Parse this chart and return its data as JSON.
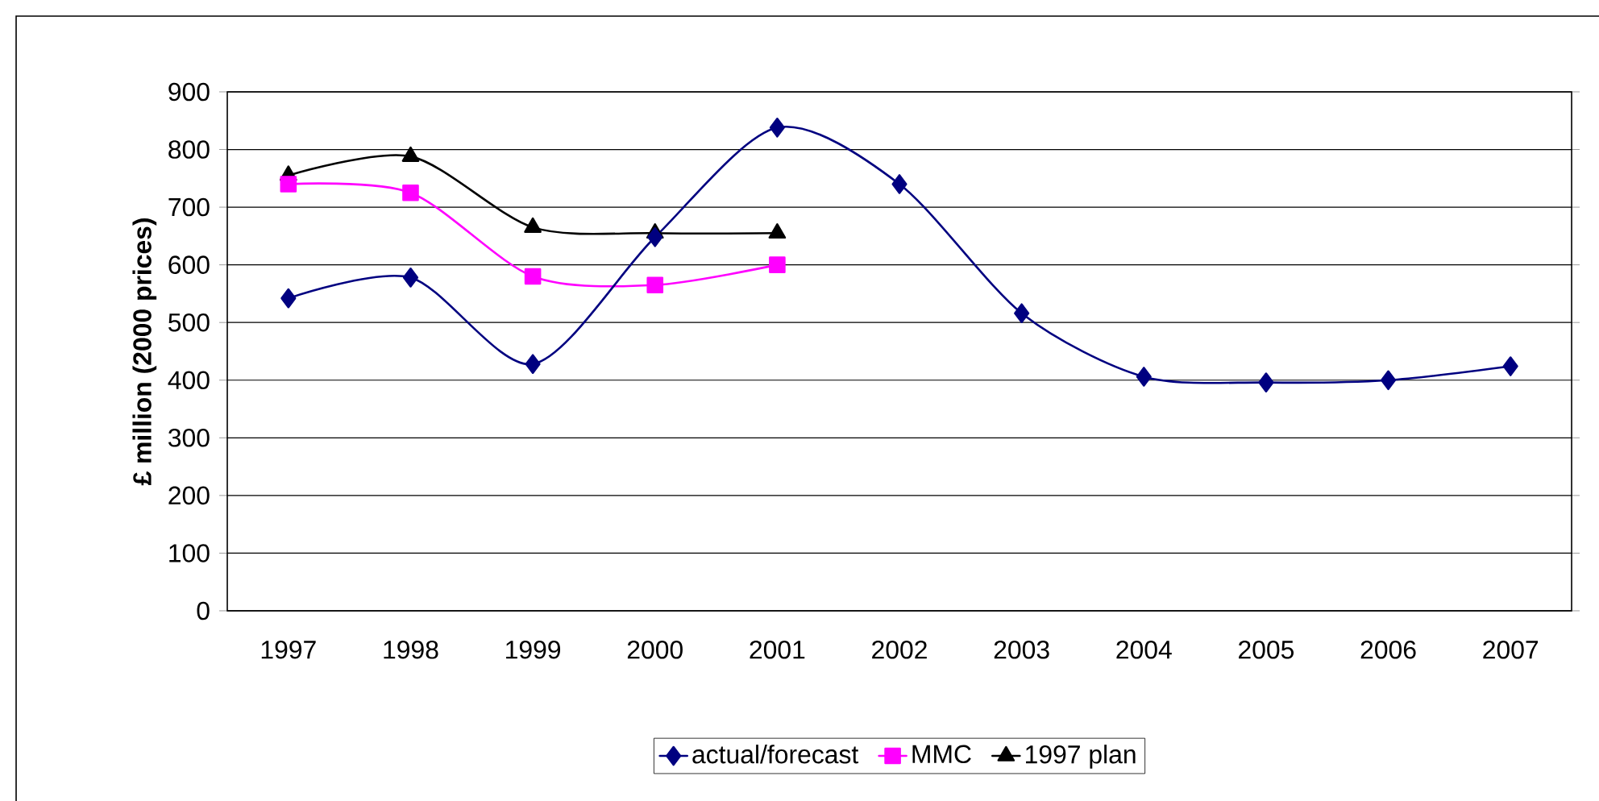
{
  "chart_data": {
    "type": "line",
    "ylabel": "£ million (2000 prices)",
    "categories": [
      "1997",
      "1998",
      "1999",
      "2000",
      "2001",
      "2002",
      "2003",
      "2004",
      "2005",
      "2006",
      "2007"
    ],
    "series": [
      {
        "name": "actual/forecast",
        "color": "#000080",
        "marker": "diamond",
        "values": [
          542,
          578,
          428,
          648,
          838,
          740,
          516,
          406,
          396,
          400,
          424
        ]
      },
      {
        "name": "MMC",
        "color": "#ff00ff",
        "marker": "square",
        "values": [
          740,
          725,
          580,
          565,
          600,
          null,
          null,
          null,
          null,
          null,
          null
        ]
      },
      {
        "name": "1997 plan",
        "color": "#000000",
        "marker": "triangle",
        "values": [
          755,
          788,
          665,
          655,
          655,
          null,
          null,
          null,
          null,
          null,
          null
        ]
      }
    ],
    "ylim": [
      0,
      900
    ],
    "yticks": [
      0,
      100,
      200,
      300,
      400,
      500,
      600,
      700,
      800,
      900
    ],
    "grid": "y",
    "legend": "bottom"
  }
}
